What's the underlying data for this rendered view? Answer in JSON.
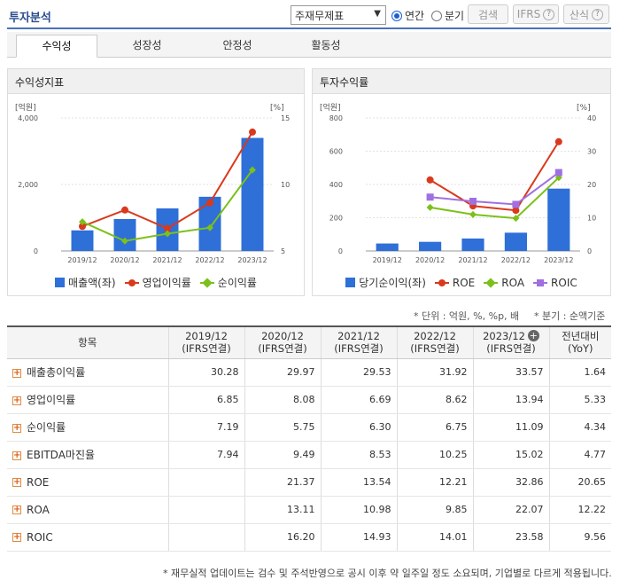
{
  "header": {
    "title": "투자분석",
    "select_value": "주재무제표",
    "radio_annual": "연간",
    "radio_quarter": "분기",
    "search_label": "검색",
    "ifrs_label": "IFRS",
    "calc_label": "산식",
    "help_glyph": "?"
  },
  "tabs": [
    "수익성",
    "성장성",
    "안정성",
    "활동성"
  ],
  "charts": {
    "left_title": "수익성지표",
    "right_title": "투자수익률",
    "left_yunit_left": "[억원]",
    "left_yunit_right": "[%]",
    "right_yunit_left": "[억원]",
    "right_yunit_right": "[%]",
    "left_legend": [
      "매출액(좌)",
      "영업이익률",
      "순이익률"
    ],
    "right_legend": [
      "당기순이익(좌)",
      "ROE",
      "ROA",
      "ROIC"
    ]
  },
  "chart_data": [
    {
      "type": "bar",
      "title": "수익성지표",
      "categories": [
        "2019/12",
        "2020/12",
        "2021/12",
        "2022/12",
        "2023/12"
      ],
      "ylim_left": [
        0,
        4000
      ],
      "left_ticks": [
        "0",
        "2,000",
        "4,000"
      ],
      "ylim_right": [
        5,
        15
      ],
      "right_ticks": [
        "5",
        "10",
        "15"
      ],
      "series": [
        {
          "name": "매출액(좌)",
          "type": "bar",
          "axis": "left",
          "color": "#2e6fd8",
          "values": [
            620,
            960,
            1280,
            1630,
            3400
          ]
        },
        {
          "name": "영업이익률",
          "type": "line",
          "axis": "right",
          "color": "#d9391c",
          "values": [
            6.85,
            8.08,
            6.69,
            8.62,
            13.94
          ]
        },
        {
          "name": "순이익률",
          "type": "line",
          "axis": "right",
          "color": "#7cc01b",
          "values": [
            7.19,
            5.75,
            6.3,
            6.75,
            11.09
          ]
        }
      ]
    },
    {
      "type": "bar",
      "title": "투자수익률",
      "categories": [
        "2019/12",
        "2020/12",
        "2021/12",
        "2022/12",
        "2023/12"
      ],
      "ylim_left": [
        0,
        800
      ],
      "left_ticks": [
        "0",
        "200",
        "400",
        "600",
        "800"
      ],
      "ylim_right": [
        0,
        40
      ],
      "right_ticks": [
        "0",
        "10",
        "20",
        "30",
        "40"
      ],
      "series": [
        {
          "name": "당기순이익(좌)",
          "type": "bar",
          "axis": "left",
          "color": "#2e6fd8",
          "values": [
            45,
            55,
            75,
            110,
            375
          ]
        },
        {
          "name": "ROE",
          "type": "line",
          "axis": "right",
          "color": "#d9391c",
          "values": [
            null,
            21.37,
            13.54,
            12.21,
            32.86
          ]
        },
        {
          "name": "ROA",
          "type": "line",
          "axis": "right",
          "color": "#7cc01b",
          "values": [
            null,
            13.11,
            10.98,
            9.85,
            22.07
          ]
        },
        {
          "name": "ROIC",
          "type": "line",
          "axis": "right",
          "color": "#a070e0",
          "values": [
            null,
            16.2,
            14.93,
            14.01,
            23.58
          ]
        }
      ]
    }
  ],
  "notes": {
    "units": "* 단위 : 억원, %, %p, 배",
    "period": "* 분기 : 순액기준",
    "footnote": "* 재무실적 업데이트는 검수 및 주석반영으로 공시 이후 약 일주일 정도 소요되며, 기업별로 다르게 적용됩니다."
  },
  "table": {
    "col_item": "항목",
    "columns": [
      {
        "year": "2019/12",
        "sub": "(IFRS연결)"
      },
      {
        "year": "2020/12",
        "sub": "(IFRS연결)"
      },
      {
        "year": "2021/12",
        "sub": "(IFRS연결)"
      },
      {
        "year": "2022/12",
        "sub": "(IFRS연결)"
      },
      {
        "year": "2023/12",
        "sub": "(IFRS연결)"
      },
      {
        "year": "전년대비",
        "sub": "(YoY)"
      }
    ],
    "rows": [
      {
        "label": "매출총이익률",
        "values": [
          "30.28",
          "29.97",
          "29.53",
          "31.92",
          "33.57",
          "1.64"
        ]
      },
      {
        "label": "영업이익률",
        "values": [
          "6.85",
          "8.08",
          "6.69",
          "8.62",
          "13.94",
          "5.33"
        ]
      },
      {
        "label": "순이익률",
        "values": [
          "7.19",
          "5.75",
          "6.30",
          "6.75",
          "11.09",
          "4.34"
        ]
      },
      {
        "label": "EBITDA마진율",
        "values": [
          "7.94",
          "9.49",
          "8.53",
          "10.25",
          "15.02",
          "4.77"
        ]
      },
      {
        "label": "ROE",
        "values": [
          "",
          "21.37",
          "13.54",
          "12.21",
          "32.86",
          "20.65"
        ]
      },
      {
        "label": "ROA",
        "values": [
          "",
          "13.11",
          "10.98",
          "9.85",
          "22.07",
          "12.22"
        ]
      },
      {
        "label": "ROIC",
        "values": [
          "",
          "16.20",
          "14.93",
          "14.01",
          "23.58",
          "9.56"
        ]
      }
    ]
  }
}
